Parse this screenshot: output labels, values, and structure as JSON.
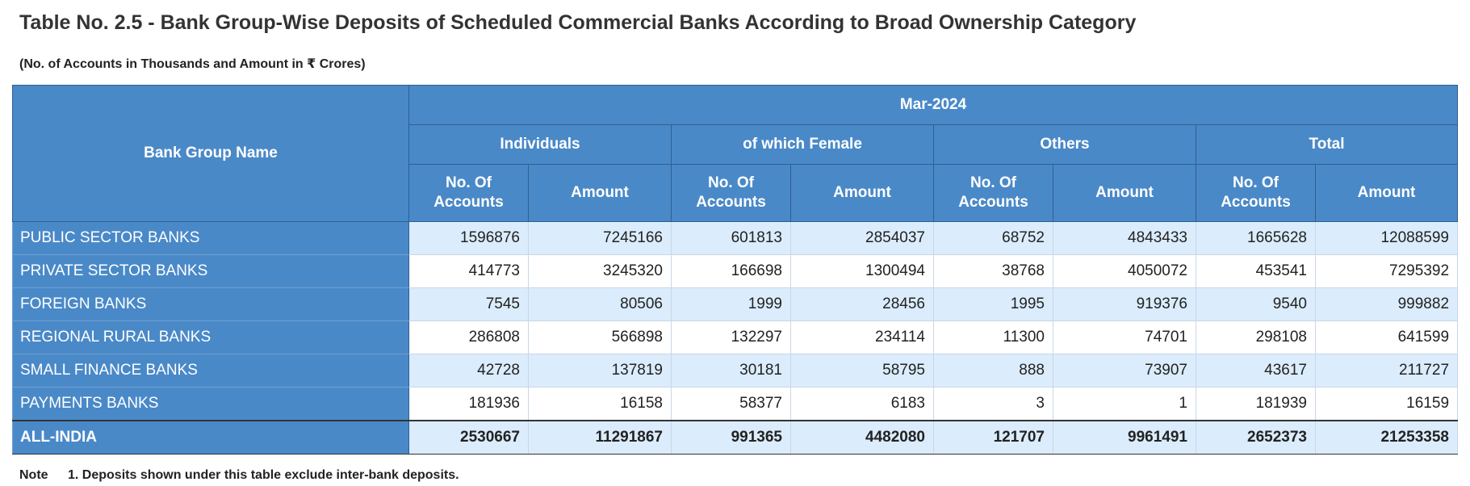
{
  "title": "Table No. 2.5 - Bank Group-Wise Deposits of Scheduled Commercial Banks According to Broad Ownership Category",
  "subtitle": "(No. of Accounts in Thousands and Amount in ₹ Crores)",
  "header": {
    "bank_group_label": "Bank Group Name",
    "period": "Mar-2024",
    "groups": [
      "Individuals",
      "of which Female",
      "Others",
      "Total"
    ],
    "col_accounts": "No. Of Accounts",
    "col_amount": "Amount"
  },
  "rows": [
    {
      "name": "PUBLIC SECTOR BANKS",
      "values": [
        "1596876",
        "7245166",
        "601813",
        "2854037",
        "68752",
        "4843433",
        "1665628",
        "12088599"
      ]
    },
    {
      "name": "PRIVATE SECTOR BANKS",
      "values": [
        "414773",
        "3245320",
        "166698",
        "1300494",
        "38768",
        "4050072",
        "453541",
        "7295392"
      ]
    },
    {
      "name": "FOREIGN BANKS",
      "values": [
        "7545",
        "80506",
        "1999",
        "28456",
        "1995",
        "919376",
        "9540",
        "999882"
      ]
    },
    {
      "name": "REGIONAL RURAL BANKS",
      "values": [
        "286808",
        "566898",
        "132297",
        "234114",
        "11300",
        "74701",
        "298108",
        "641599"
      ]
    },
    {
      "name": "SMALL FINANCE BANKS",
      "values": [
        "42728",
        "137819",
        "30181",
        "58795",
        "888",
        "73907",
        "43617",
        "211727"
      ]
    },
    {
      "name": "PAYMENTS BANKS",
      "values": [
        "181936",
        "16158",
        "58377",
        "6183",
        "3",
        "1",
        "181939",
        "16159"
      ]
    }
  ],
  "total": {
    "name": "ALL-INDIA",
    "values": [
      "2530667",
      "11291867",
      "991365",
      "4482080",
      "121707",
      "9961491",
      "2652373",
      "21253358"
    ]
  },
  "note": {
    "label": "Note",
    "text": "1. Deposits shown under this table exclude inter-bank deposits."
  },
  "colors": {
    "header_bg": "#4a89c8",
    "row_stripe": "#dbecfc"
  }
}
